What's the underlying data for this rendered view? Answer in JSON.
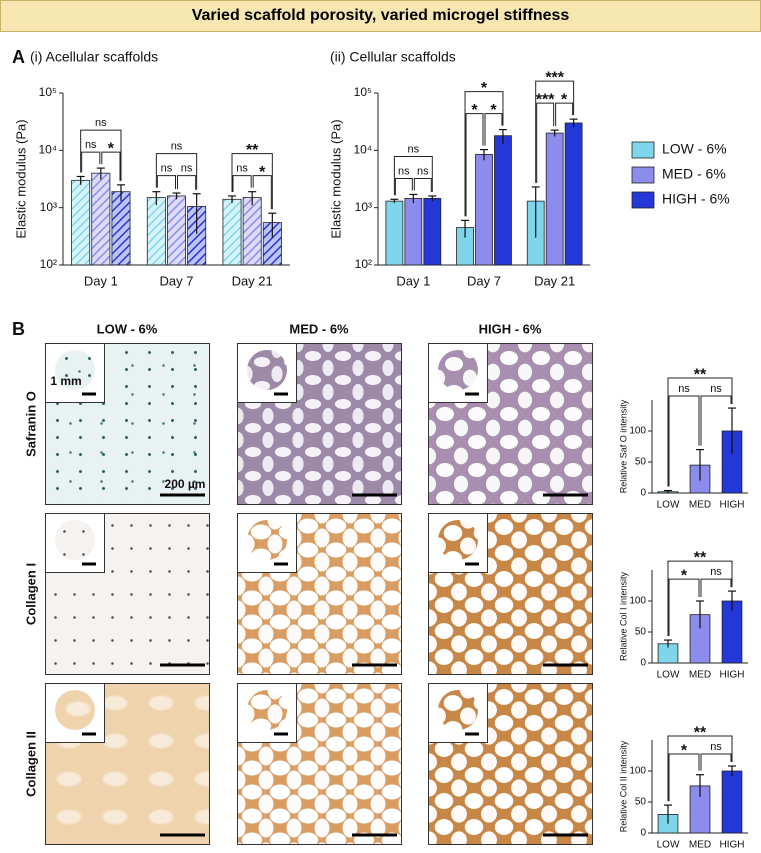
{
  "header": {
    "title": "Varied scaffold porosity, varied microgel stiffness"
  },
  "panels": {
    "a": {
      "label": "A"
    },
    "b": {
      "label": "B",
      "columns": [
        "LOW - 6%",
        "MED - 6%",
        "HIGH - 6%"
      ],
      "rows": [
        "Safranin O",
        "Collagen I",
        "Collagen II"
      ],
      "scale_bars": {
        "inset": "1 mm",
        "main": "200 µm"
      }
    }
  },
  "chart_data": [
    {
      "type": "grouped_bar",
      "title": "(i) Acellular scaffolds",
      "ylabel": "Elastic modulus (Pa)",
      "log_scale": true,
      "hatch": true,
      "categories": [
        "Day 1",
        "Day 7",
        "Day 21"
      ],
      "series": [
        {
          "color": "#7fd6ec",
          "values": [
            3000,
            1500,
            1400
          ],
          "errors": [
            500,
            400,
            200
          ]
        },
        {
          "color": "#8c8cec",
          "values": [
            4000,
            1600,
            1500
          ],
          "errors": [
            900,
            200,
            400
          ]
        },
        {
          "color": "#2438d8",
          "values": [
            1900,
            1050,
            550
          ],
          "errors": [
            600,
            700,
            250
          ]
        }
      ],
      "ylim": [
        100,
        100000
      ],
      "yticks": [
        {
          "value": 100,
          "label": "10²"
        },
        {
          "value": 1000,
          "label": "10³"
        },
        {
          "value": 10000,
          "label": "10⁴"
        },
        {
          "value": 100000,
          "label": "10⁵"
        }
      ],
      "comparisons": [
        [
          {
            "pair": [
              0,
              1
            ],
            "label": "ns"
          },
          {
            "pair": [
              1,
              2
            ],
            "label": "*"
          },
          {
            "pair": [
              0,
              2
            ],
            "label": "ns"
          }
        ],
        [
          {
            "pair": [
              0,
              1
            ],
            "label": "ns"
          },
          {
            "pair": [
              1,
              2
            ],
            "label": "ns"
          },
          {
            "pair": [
              0,
              2
            ],
            "label": "ns"
          }
        ],
        [
          {
            "pair": [
              0,
              1
            ],
            "label": "ns"
          },
          {
            "pair": [
              1,
              2
            ],
            "label": "*"
          },
          {
            "pair": [
              0,
              2
            ],
            "label": "**"
          }
        ]
      ]
    },
    {
      "type": "grouped_bar",
      "title": "(ii) Cellular scaffolds",
      "ylabel": "Elastic modulus (Pa)",
      "log_scale": true,
      "hatch": false,
      "legend": "right",
      "categories": [
        "Day 1",
        "Day 7",
        "Day 21"
      ],
      "series": [
        {
          "name": "LOW - 6%",
          "color": "#7fd6ec",
          "values": [
            1300,
            450,
            1300
          ],
          "errors": [
            100,
            150,
            1000
          ]
        },
        {
          "name": "MED - 6%",
          "color": "#8c8cec",
          "values": [
            1450,
            8500,
            20000
          ],
          "errors": [
            250,
            1800,
            2500
          ]
        },
        {
          "name": "HIGH - 6%",
          "color": "#2438d8",
          "values": [
            1450,
            18000,
            30000
          ],
          "errors": [
            150,
            5000,
            5000
          ]
        }
      ],
      "ylim": [
        100,
        100000
      ],
      "yticks": [
        {
          "value": 100,
          "label": "10²"
        },
        {
          "value": 1000,
          "label": "10³"
        },
        {
          "value": 10000,
          "label": "10⁴"
        },
        {
          "value": 100000,
          "label": "10⁵"
        }
      ],
      "comparisons": [
        [
          {
            "pair": [
              0,
              1
            ],
            "label": "ns"
          },
          {
            "pair": [
              1,
              2
            ],
            "label": "ns"
          },
          {
            "pair": [
              0,
              2
            ],
            "label": "ns"
          }
        ],
        [
          {
            "pair": [
              0,
              1
            ],
            "label": "*"
          },
          {
            "pair": [
              1,
              2
            ],
            "label": "*"
          },
          {
            "pair": [
              0,
              2
            ],
            "label": "*"
          }
        ],
        [
          {
            "pair": [
              0,
              1
            ],
            "label": "***"
          },
          {
            "pair": [
              1,
              2
            ],
            "label": "*"
          },
          {
            "pair": [
              0,
              2
            ],
            "label": "***"
          }
        ]
      ]
    },
    {
      "type": "bar",
      "ylabel": "Relative Saf O intensity",
      "categories": [
        "LOW",
        "MED",
        "HIGH"
      ],
      "values": [
        2,
        45,
        100
      ],
      "errors": [
        2,
        25,
        37
      ],
      "colors": [
        "#7fd6ec",
        "#8c8cec",
        "#2438d8"
      ],
      "ylim": [
        0,
        150
      ],
      "yticks": [
        0,
        50,
        100
      ],
      "comparisons": [
        {
          "pair": [
            0,
            1
          ],
          "label": "ns"
        },
        {
          "pair": [
            1,
            2
          ],
          "label": "ns"
        },
        {
          "pair": [
            0,
            2
          ],
          "label": "**"
        }
      ]
    },
    {
      "type": "bar",
      "ylabel": "Relative Col I intensity",
      "categories": [
        "LOW",
        "MED",
        "HIGH"
      ],
      "values": [
        31,
        78,
        100
      ],
      "errors": [
        6,
        22,
        16
      ],
      "colors": [
        "#7fd6ec",
        "#8c8cec",
        "#2438d8"
      ],
      "ylim": [
        0,
        150
      ],
      "yticks": [
        0,
        50,
        100
      ],
      "comparisons": [
        {
          "pair": [
            0,
            1
          ],
          "label": "*"
        },
        {
          "pair": [
            1,
            2
          ],
          "label": "ns"
        },
        {
          "pair": [
            0,
            2
          ],
          "label": "**"
        }
      ]
    },
    {
      "type": "bar",
      "ylabel": "Relative Col II intensity",
      "categories": [
        "LOW",
        "MED",
        "HIGH"
      ],
      "values": [
        30,
        76,
        100
      ],
      "errors": [
        15,
        18,
        8
      ],
      "colors": [
        "#7fd6ec",
        "#8c8cec",
        "#2438d8"
      ],
      "ylim": [
        0,
        150
      ],
      "yticks": [
        0,
        50,
        100
      ],
      "comparisons": [
        {
          "pair": [
            0,
            1
          ],
          "label": "*"
        },
        {
          "pair": [
            1,
            2
          ],
          "label": "ns"
        },
        {
          "pair": [
            0,
            2
          ],
          "label": "**"
        }
      ]
    }
  ]
}
